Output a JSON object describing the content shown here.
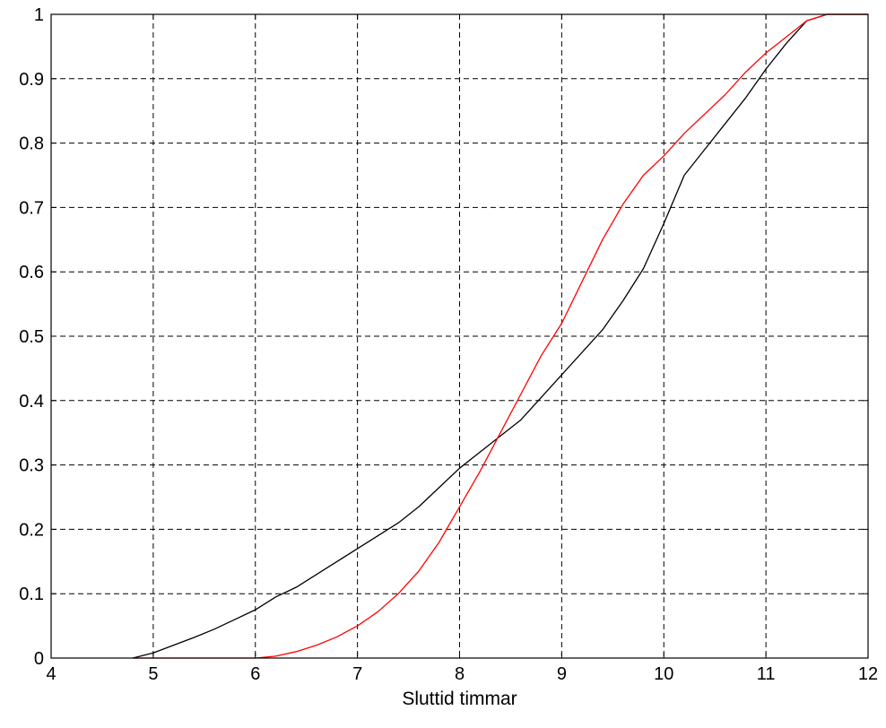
{
  "chart_data": {
    "type": "line",
    "title": "",
    "xlabel": "Sluttid timmar",
    "ylabel": "",
    "xlim": [
      4,
      12
    ],
    "ylim": [
      0,
      1
    ],
    "xticks": [
      4,
      5,
      6,
      7,
      8,
      9,
      10,
      11,
      12
    ],
    "yticks": [
      0,
      0.1,
      0.2,
      0.3,
      0.4,
      0.5,
      0.6,
      0.7,
      0.8,
      0.9,
      1
    ],
    "xtick_labels": [
      "4",
      "5",
      "6",
      "7",
      "8",
      "9",
      "10",
      "11",
      "12"
    ],
    "ytick_labels": [
      "0",
      "0.1",
      "0.2",
      "0.3",
      "0.4",
      "0.5",
      "0.6",
      "0.7",
      "0.8",
      "0.9",
      "1"
    ],
    "grid": true,
    "legend": "none",
    "series": [
      {
        "color": "#000000",
        "x": [
          4.8,
          5.0,
          5.2,
          5.4,
          5.6,
          5.8,
          6.0,
          6.2,
          6.4,
          6.6,
          6.8,
          7.0,
          7.2,
          7.4,
          7.6,
          7.8,
          8.0,
          8.2,
          8.4,
          8.6,
          8.8,
          9.0,
          9.2,
          9.4,
          9.6,
          9.8,
          10.0,
          10.2,
          10.4,
          10.6,
          10.8,
          11.0,
          11.2,
          11.4,
          11.6,
          12.0
        ],
        "y": [
          0.0,
          0.008,
          0.02,
          0.032,
          0.045,
          0.06,
          0.075,
          0.095,
          0.11,
          0.13,
          0.15,
          0.17,
          0.19,
          0.21,
          0.235,
          0.265,
          0.295,
          0.32,
          0.345,
          0.37,
          0.405,
          0.44,
          0.475,
          0.51,
          0.555,
          0.605,
          0.675,
          0.75,
          0.79,
          0.83,
          0.87,
          0.915,
          0.955,
          0.99,
          1.0,
          1.0
        ]
      },
      {
        "color": "#ff0000",
        "x": [
          4.8,
          5.0,
          5.5,
          6.0,
          6.2,
          6.4,
          6.6,
          6.8,
          7.0,
          7.2,
          7.4,
          7.6,
          7.8,
          8.0,
          8.2,
          8.4,
          8.6,
          8.8,
          9.0,
          9.2,
          9.4,
          9.6,
          9.8,
          10.0,
          10.2,
          10.4,
          10.6,
          10.8,
          11.0,
          11.2,
          11.4,
          11.6,
          12.0
        ],
        "y": [
          0.0,
          0.0,
          0.0,
          0.0,
          0.003,
          0.01,
          0.02,
          0.033,
          0.05,
          0.072,
          0.1,
          0.135,
          0.18,
          0.235,
          0.29,
          0.35,
          0.41,
          0.47,
          0.52,
          0.585,
          0.65,
          0.705,
          0.75,
          0.78,
          0.815,
          0.845,
          0.875,
          0.91,
          0.94,
          0.965,
          0.99,
          1.0,
          1.0
        ]
      }
    ]
  }
}
